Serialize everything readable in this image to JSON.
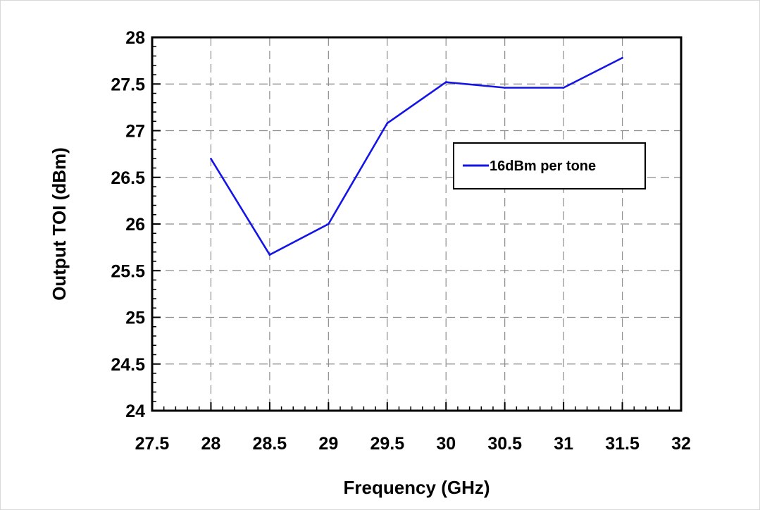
{
  "chart_data": {
    "type": "line",
    "xlabel": "Frequency (GHz)",
    "ylabel": "Output TOI (dBm)",
    "xlim": [
      27.5,
      32
    ],
    "ylim": [
      24,
      28
    ],
    "xticks": [
      "27.5",
      "28",
      "28.5",
      "29",
      "29.5",
      "30",
      "30.5",
      "31",
      "31.5",
      "32"
    ],
    "yticks": [
      "24",
      "24.5",
      "25",
      "25.5",
      "26",
      "26.5",
      "27",
      "27.5",
      "28"
    ],
    "grid": true,
    "legend_position": "right",
    "series": [
      {
        "name": "16dBm per tone",
        "color": "#1414e6",
        "x": [
          28,
          28.5,
          29,
          29.5,
          30,
          30.5,
          31,
          31.5
        ],
        "y": [
          26.7,
          25.67,
          26.0,
          27.08,
          27.52,
          27.46,
          27.46,
          27.78
        ]
      }
    ]
  }
}
